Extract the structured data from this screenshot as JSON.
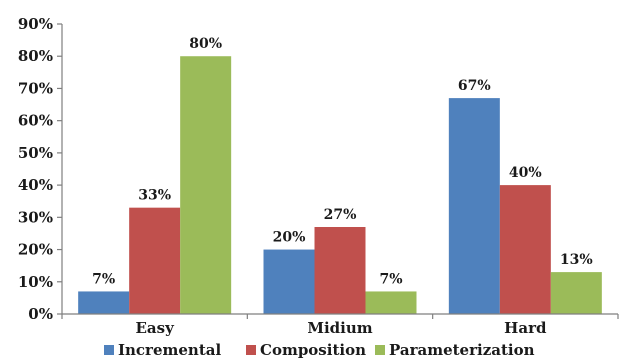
{
  "chart_data": {
    "type": "bar",
    "categories": [
      "Easy",
      "Midium",
      "Hard"
    ],
    "series": [
      {
        "name": "Incremental",
        "color": "#4f81bd",
        "values": [
          7,
          20,
          67
        ],
        "labels": [
          "7%",
          "20%",
          "67%"
        ]
      },
      {
        "name": "Composition",
        "color": "#c0504d",
        "values": [
          33,
          27,
          40
        ],
        "labels": [
          "33%",
          "27%",
          "40%"
        ]
      },
      {
        "name": "Parameterization",
        "color": "#9bbb59",
        "values": [
          80,
          7,
          13
        ],
        "labels": [
          "80%",
          "7%",
          "13%"
        ]
      }
    ],
    "ylim": [
      0,
      90
    ],
    "yticks": [
      0,
      10,
      20,
      30,
      40,
      50,
      60,
      70,
      80,
      90
    ],
    "ytick_labels": [
      "0%",
      "10%",
      "20%",
      "30%",
      "40%",
      "50%",
      "60%",
      "70%",
      "80%",
      "90%"
    ],
    "grid": false,
    "legend": "bottom"
  }
}
